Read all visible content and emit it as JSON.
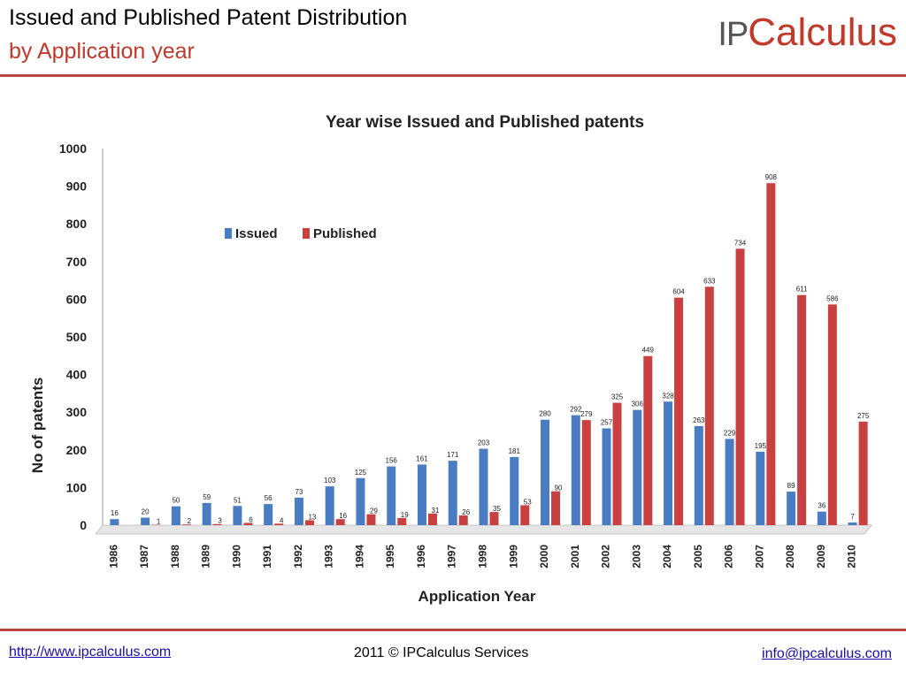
{
  "header": {
    "title_line1": "Issued and Published Patent Distribution",
    "title_line2": "by Application year",
    "logo_ip": "IP",
    "logo_calc": "Calculus"
  },
  "footer": {
    "website": "http://www.ipcalculus.com",
    "copyright": "2011 © IPCalculus Services",
    "email": "info@ipcalculus.com"
  },
  "colors": {
    "issued": "#4a7cc4",
    "published": "#c84040",
    "accent": "#b84444"
  },
  "chart_data": {
    "type": "bar",
    "title": "Year wise Issued and Published patents",
    "xlabel": "Application Year",
    "ylabel": "No of patents",
    "ylim": [
      0,
      1000
    ],
    "yticks": [
      0,
      100,
      200,
      300,
      400,
      500,
      600,
      700,
      800,
      900,
      1000
    ],
    "grid": false,
    "legend": "upper-left",
    "categories": [
      "1986",
      "1987",
      "1988",
      "1989",
      "1990",
      "1991",
      "1992",
      "1993",
      "1994",
      "1995",
      "1996",
      "1997",
      "1998",
      "1999",
      "2000",
      "2001",
      "2002",
      "2003",
      "2004",
      "2005",
      "2006",
      "2007",
      "2008",
      "2009",
      "2010"
    ],
    "series": [
      {
        "name": "Issued",
        "values": [
          16,
          20,
          50,
          59,
          51,
          56,
          73,
          103,
          125,
          156,
          161,
          171,
          203,
          181,
          280,
          292,
          257,
          306,
          328,
          263,
          229,
          195,
          89,
          36,
          7
        ]
      },
      {
        "name": "Published",
        "values": [
          0,
          1,
          2,
          3,
          6,
          4,
          13,
          16,
          29,
          19,
          31,
          26,
          35,
          53,
          90,
          279,
          325,
          449,
          604,
          633,
          734,
          908,
          611,
          586,
          275
        ]
      }
    ]
  }
}
